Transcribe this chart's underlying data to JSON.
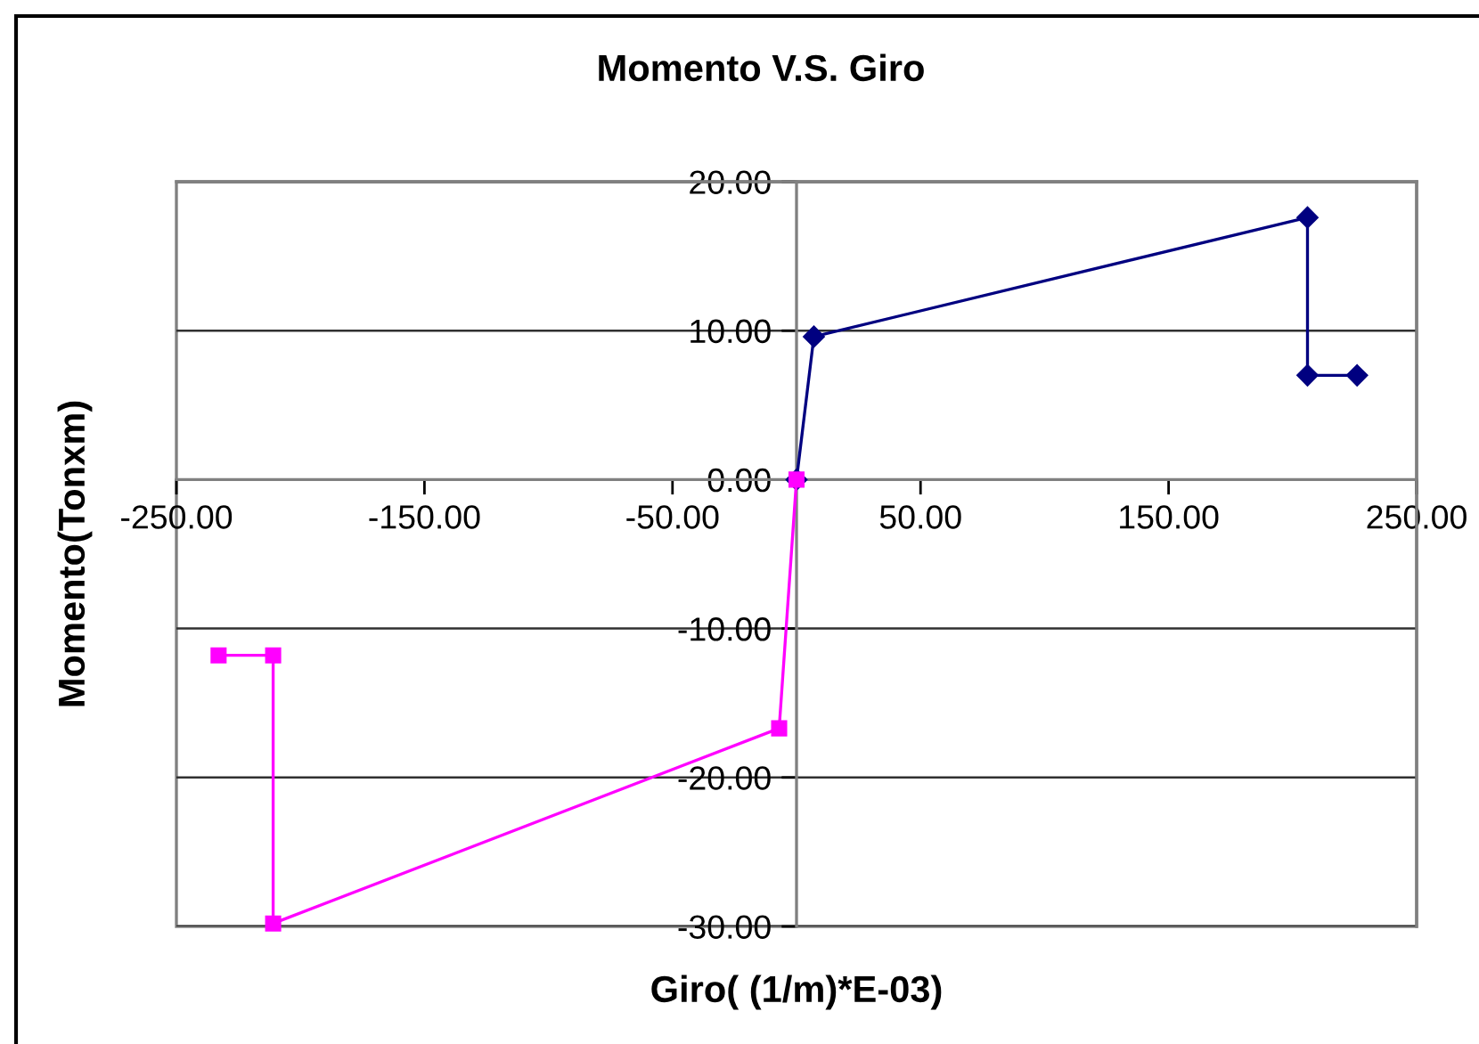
{
  "chart_data": {
    "type": "line",
    "title": "Momento V.S. Giro",
    "xlabel": "Giro( (1/m)*E-03)",
    "ylabel": "Momento(Tonxm)",
    "xlim": [
      -250,
      250
    ],
    "ylim": [
      -30,
      20
    ],
    "xticks": [
      {
        "value": -250,
        "label": "-250.00"
      },
      {
        "value": -150,
        "label": "-150.00"
      },
      {
        "value": -50,
        "label": "-50.00"
      },
      {
        "value": 50,
        "label": "50.00"
      },
      {
        "value": 150,
        "label": "150.00"
      },
      {
        "value": 250,
        "label": "250.00"
      }
    ],
    "yticks": [
      {
        "value": -30,
        "label": "-30.00"
      },
      {
        "value": -20,
        "label": "-20.00"
      },
      {
        "value": -10,
        "label": "-10.00"
      },
      {
        "value": 0,
        "label": "0.00"
      },
      {
        "value": 10,
        "label": "10.00"
      },
      {
        "value": 20,
        "label": "20.00"
      }
    ],
    "grid": "y",
    "line_style": "solid",
    "series": [
      {
        "color": "#000080",
        "marker": "diamond",
        "x": [
          0,
          7,
          206,
          206,
          226
        ],
        "values": [
          0,
          9.6,
          17.6,
          7.0,
          7.0
        ]
      },
      {
        "color": "#ff00ff",
        "marker": "square",
        "x": [
          0,
          -7,
          -211,
          -211,
          -233
        ],
        "values": [
          0,
          -16.7,
          -29.8,
          -11.8,
          -11.8
        ]
      }
    ]
  }
}
